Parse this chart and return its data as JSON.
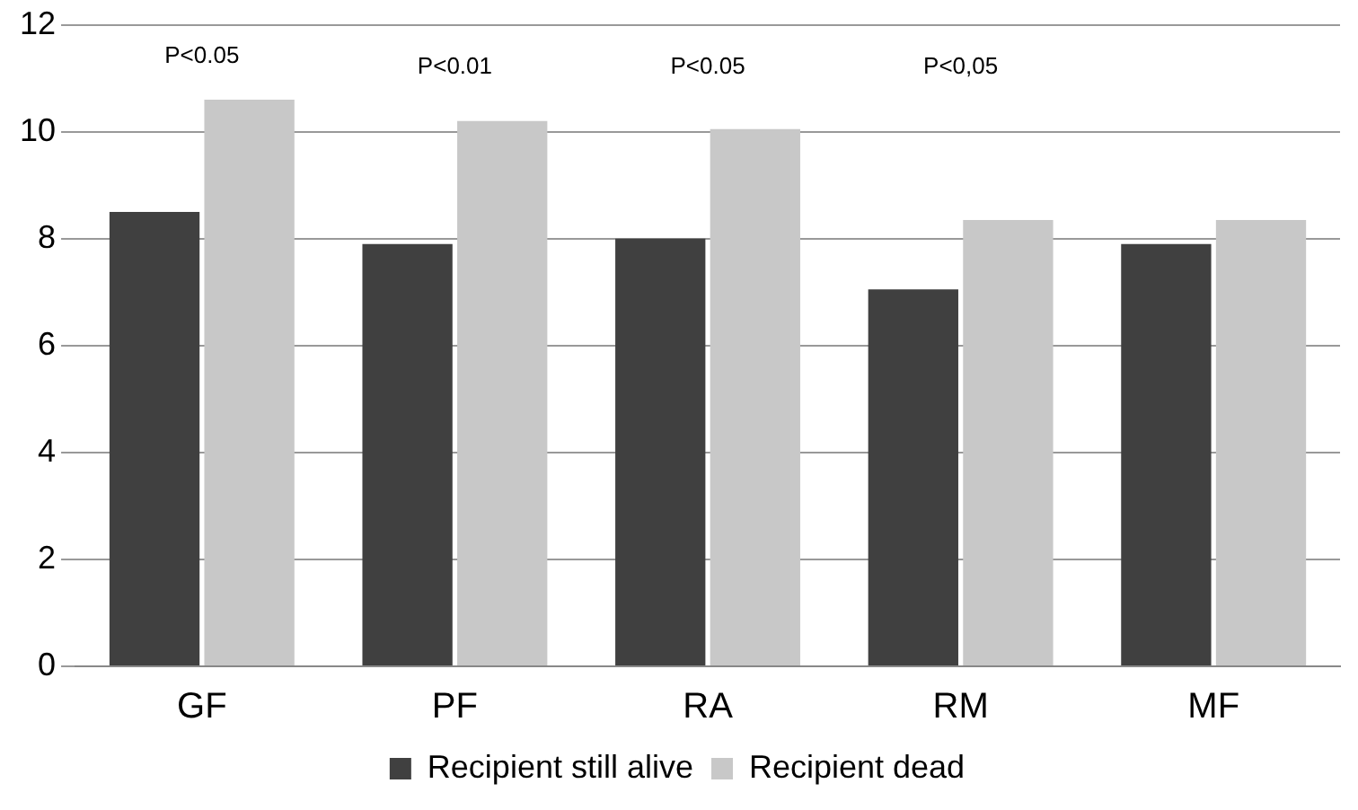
{
  "chart_data": {
    "type": "bar",
    "categories": [
      "GF",
      "PF",
      "RA",
      "RM",
      "MF"
    ],
    "series": [
      {
        "name": "Recipient still alive",
        "color": "#404040",
        "values": [
          8.5,
          7.9,
          8.0,
          7.05,
          7.9
        ]
      },
      {
        "name": "Recipient dead",
        "color": "#c8c8c8",
        "values": [
          10.6,
          10.2,
          10.05,
          8.35,
          8.35
        ]
      }
    ],
    "ylim": [
      0,
      12
    ],
    "yticks": [
      0,
      2,
      4,
      6,
      8,
      10,
      12
    ],
    "grid": "y",
    "legend": "bottom",
    "annotations": [
      "P<0.05",
      "P<0.01",
      "P<0.05",
      "P<0,05"
    ]
  }
}
